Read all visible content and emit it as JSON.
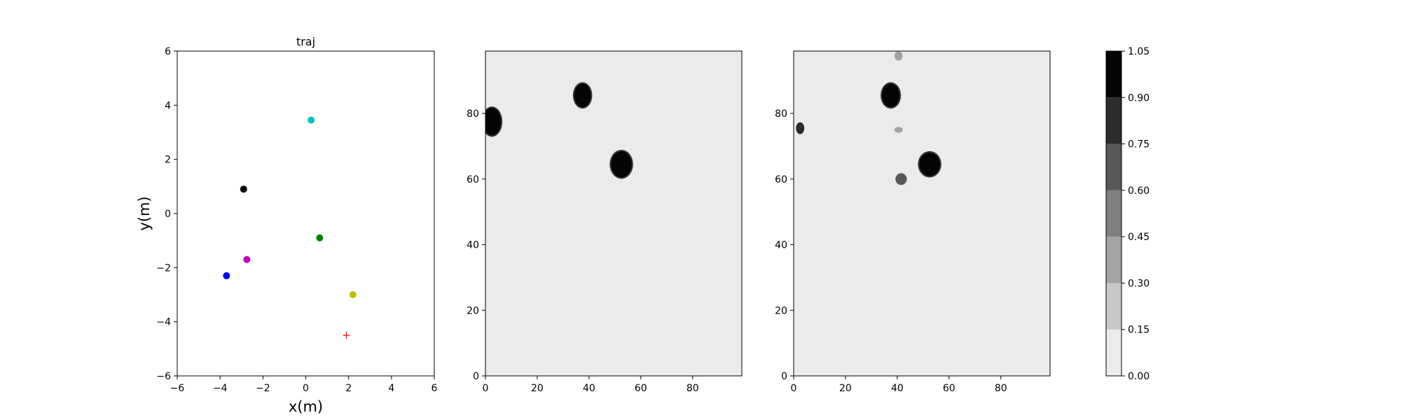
{
  "chart_data": [
    {
      "type": "scatter",
      "title": "traj",
      "xlabel": "x(m)",
      "ylabel": "y(m)",
      "xlim": [
        -6,
        6
      ],
      "ylim": [
        -6,
        6
      ],
      "xticks": [
        -6,
        -4,
        -2,
        0,
        2,
        4,
        6
      ],
      "yticks": [
        -6,
        -4,
        -2,
        0,
        2,
        4,
        6
      ],
      "grid": false,
      "points": [
        {
          "x": 0.25,
          "y": 3.45,
          "color": "#00bfbf",
          "marker": "circle"
        },
        {
          "x": -2.9,
          "y": 0.9,
          "color": "#000000",
          "marker": "circle"
        },
        {
          "x": 0.65,
          "y": -0.9,
          "color": "#008000",
          "marker": "circle"
        },
        {
          "x": -2.75,
          "y": -1.7,
          "color": "#bf00bf",
          "marker": "circle"
        },
        {
          "x": -3.7,
          "y": -2.3,
          "color": "#0000ff",
          "marker": "circle"
        },
        {
          "x": 2.2,
          "y": -3.0,
          "color": "#bfbf00",
          "marker": "circle"
        },
        {
          "x": 1.9,
          "y": -4.5,
          "color": "#ff0000",
          "marker": "plus"
        }
      ]
    },
    {
      "type": "heatmap",
      "xlim": [
        0,
        99
      ],
      "ylim": [
        0,
        99
      ],
      "xticks": [
        0,
        20,
        40,
        60,
        80
      ],
      "yticks": [
        0,
        20,
        40,
        60,
        80
      ],
      "background_value": 0.05,
      "blobs": [
        {
          "x": 2.5,
          "y": 77.5,
          "rx": 3.5,
          "ry": 4.2,
          "value": 1.0
        },
        {
          "x": 37.5,
          "y": 85.5,
          "rx": 3.2,
          "ry": 3.6,
          "value": 1.0
        },
        {
          "x": 52.5,
          "y": 64.5,
          "rx": 4.0,
          "ry": 4.0,
          "value": 1.0
        }
      ]
    },
    {
      "type": "heatmap",
      "xlim": [
        0,
        99
      ],
      "ylim": [
        0,
        99
      ],
      "xticks": [
        0,
        20,
        40,
        60,
        80
      ],
      "yticks": [
        0,
        20,
        40,
        60,
        80
      ],
      "background_value": 0.05,
      "blobs": [
        {
          "x": 40.5,
          "y": 97.5,
          "rx": 1.6,
          "ry": 1.4,
          "value": 0.35
        },
        {
          "x": 37.5,
          "y": 85.5,
          "rx": 3.4,
          "ry": 3.6,
          "value": 1.0
        },
        {
          "x": 2.5,
          "y": 75.5,
          "rx": 1.6,
          "ry": 1.8,
          "value": 0.8
        },
        {
          "x": 40.5,
          "y": 75.0,
          "rx": 1.6,
          "ry": 0.9,
          "value": 0.4
        },
        {
          "x": 52.5,
          "y": 64.5,
          "rx": 4.0,
          "ry": 3.6,
          "value": 1.0
        },
        {
          "x": 41.5,
          "y": 60.0,
          "rx": 2.2,
          "ry": 1.8,
          "value": 0.65
        }
      ]
    },
    {
      "type": "colorbar",
      "levels": [
        0.0,
        0.15,
        0.3,
        0.45,
        0.6,
        0.75,
        0.9,
        1.05
      ],
      "tick_labels": [
        "0.00",
        "0.15",
        "0.30",
        "0.45",
        "0.60",
        "0.75",
        "0.90",
        "1.05"
      ],
      "colors": [
        "#ebebeb",
        "#c8c8c8",
        "#a3a3a3",
        "#7f7f7f",
        "#585858",
        "#2c2c2c",
        "#050505"
      ]
    }
  ]
}
